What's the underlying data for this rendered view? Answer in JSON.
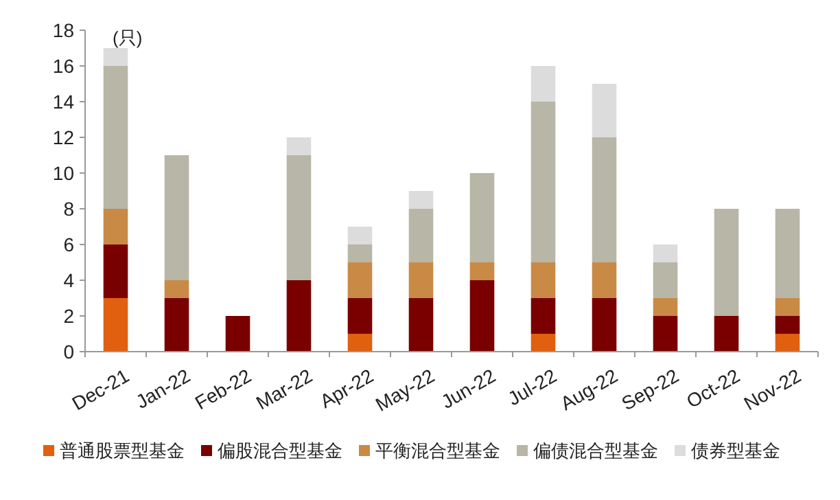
{
  "chart_data": {
    "type": "bar",
    "stacked": true,
    "ylabel": "(只)",
    "categories": [
      "Dec-21",
      "Jan-22",
      "Feb-22",
      "Mar-22",
      "Apr-22",
      "May-22",
      "Jun-22",
      "Jul-22",
      "Aug-22",
      "Sep-22",
      "Oct-22",
      "Nov-22"
    ],
    "ylim": [
      0,
      18
    ],
    "yticks": [
      0,
      2,
      4,
      6,
      8,
      10,
      12,
      14,
      16,
      18
    ],
    "grid": false,
    "legend": "bottom",
    "series": [
      {
        "name": "普通股票型基金",
        "color": "#e06010",
        "values": [
          3,
          0,
          0,
          0,
          1,
          0,
          0,
          1,
          0,
          0,
          0,
          1
        ]
      },
      {
        "name": "偏股混合型基金",
        "color": "#7a0000",
        "values": [
          3,
          3,
          2,
          4,
          2,
          3,
          4,
          2,
          3,
          2,
          2,
          1
        ]
      },
      {
        "name": "平衡混合型基金",
        "color": "#c98a45",
        "values": [
          2,
          1,
          0,
          0,
          2,
          2,
          1,
          2,
          2,
          1,
          0,
          1
        ]
      },
      {
        "name": "偏债混合型基金",
        "color": "#b8b6a6",
        "values": [
          8,
          7,
          0,
          7,
          1,
          3,
          5,
          9,
          7,
          2,
          6,
          5
        ]
      },
      {
        "name": "债券型基金",
        "color": "#dcdcdc",
        "values": [
          1,
          0,
          0,
          1,
          1,
          1,
          0,
          2,
          3,
          1,
          0,
          0
        ]
      }
    ]
  }
}
